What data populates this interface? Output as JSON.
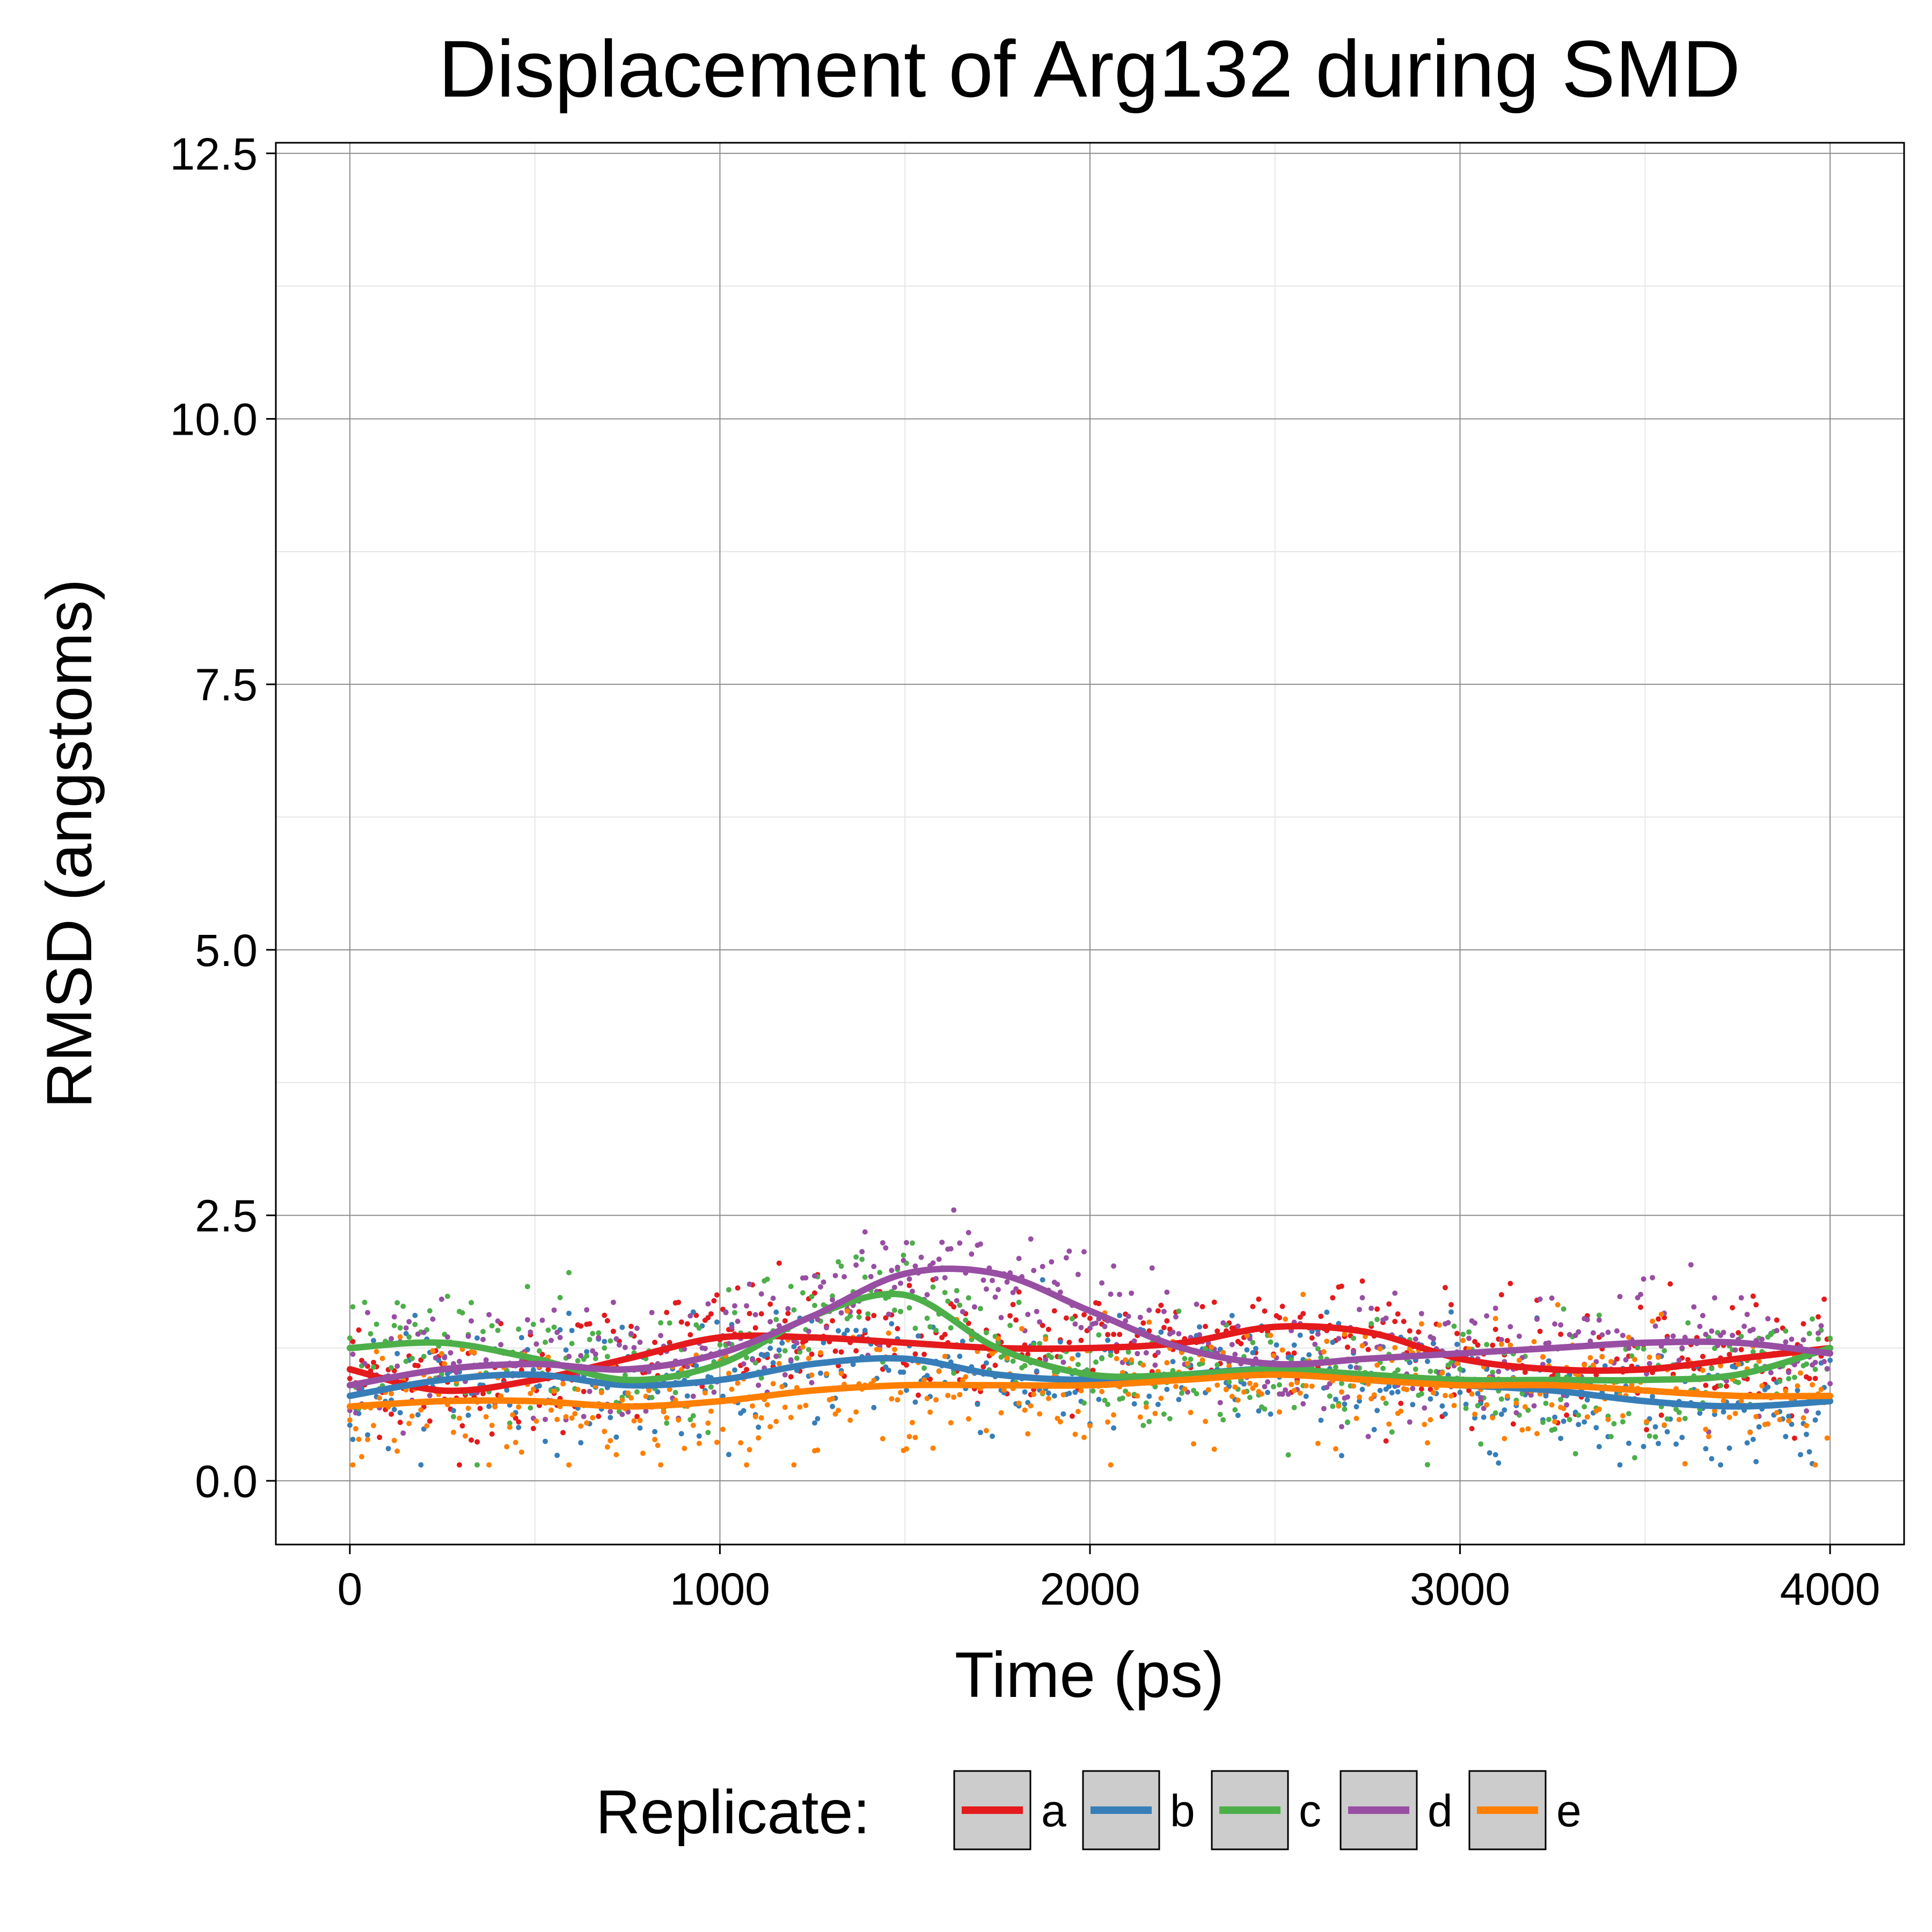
{
  "chart_data": {
    "type": "scatter",
    "title": "Displacement of Arg132 during SMD",
    "xlabel": "Time (ps)",
    "ylabel": "RMSD (angstoms)",
    "xlim": [
      -200,
      4200
    ],
    "ylim": [
      -0.6,
      12.6
    ],
    "xticks": [
      0,
      1000,
      2000,
      3000,
      4000
    ],
    "xtick_labels": [
      "0",
      "1000",
      "2000",
      "3000",
      "4000"
    ],
    "yticks": [
      0.0,
      2.5,
      5.0,
      7.5,
      10.0,
      12.5
    ],
    "ytick_labels": [
      "0.0",
      "2.5",
      "5.0",
      "7.5",
      "10.0",
      "12.5"
    ],
    "grid": true,
    "legend": {
      "title": "Replicate:",
      "placement": "bottom"
    },
    "smoothed_x": [
      0,
      250,
      500,
      750,
      1000,
      1250,
      1500,
      1750,
      2000,
      2250,
      2500,
      2750,
      3000,
      3250,
      3500,
      3750,
      4000
    ],
    "series": [
      {
        "name": "a",
        "color": "#E41A1C",
        "smooth": [
          1.05,
          0.85,
          0.95,
          1.15,
          1.35,
          1.35,
          1.3,
          1.25,
          1.25,
          1.3,
          1.45,
          1.4,
          1.15,
          1.05,
          1.05,
          1.15,
          1.25
        ]
      },
      {
        "name": "b",
        "color": "#377EB8",
        "smooth": [
          0.8,
          0.95,
          1.0,
          0.9,
          0.95,
          1.1,
          1.15,
          1.0,
          0.95,
          1.0,
          1.05,
          0.95,
          0.9,
          0.85,
          0.75,
          0.7,
          0.75
        ]
      },
      {
        "name": "c",
        "color": "#4DAF4A",
        "smooth": [
          1.25,
          1.3,
          1.15,
          0.95,
          1.1,
          1.55,
          1.75,
          1.25,
          1.0,
          1.0,
          1.05,
          1.0,
          0.95,
          0.95,
          0.95,
          1.0,
          1.25
        ]
      },
      {
        "name": "d",
        "color": "#984EA3",
        "smooth": [
          0.9,
          1.05,
          1.1,
          1.05,
          1.2,
          1.55,
          1.95,
          1.95,
          1.6,
          1.25,
          1.1,
          1.15,
          1.2,
          1.25,
          1.3,
          1.3,
          1.2
        ]
      },
      {
        "name": "e",
        "color": "#FF7F00",
        "smooth": [
          0.7,
          0.75,
          0.75,
          0.7,
          0.75,
          0.85,
          0.9,
          0.9,
          0.9,
          0.95,
          1.0,
          0.95,
          0.9,
          0.9,
          0.85,
          0.8,
          0.8
        ]
      }
    ],
    "point_noise_sd": 0.28
  }
}
